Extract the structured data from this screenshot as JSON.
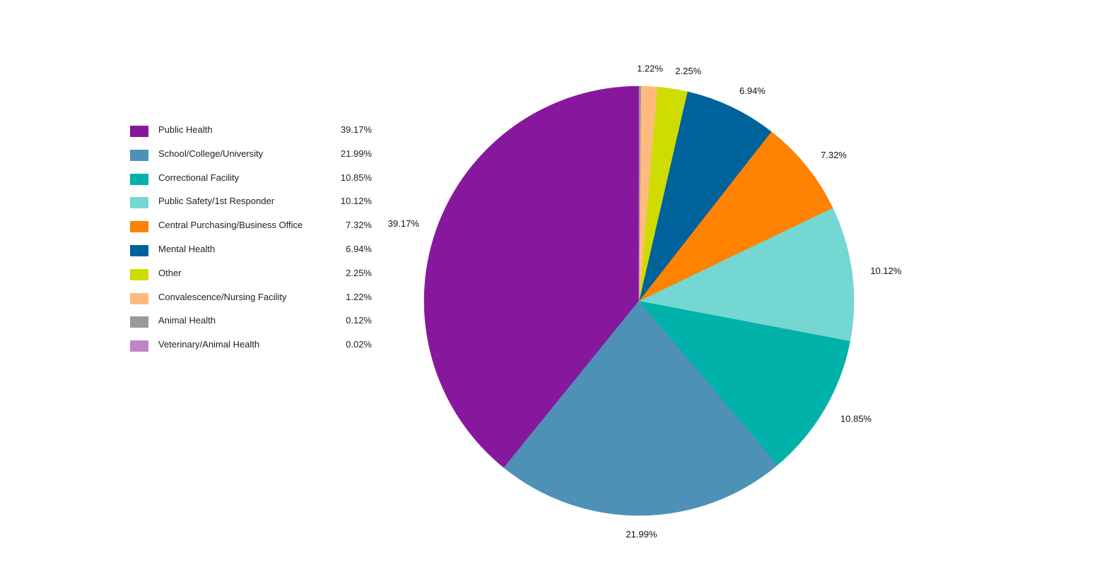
{
  "chart_data": {
    "type": "pie",
    "title": "",
    "legend_position": "left",
    "slices": [
      {
        "label": "Public Health",
        "value": 39.17,
        "display": "39.17%",
        "color": "#87189d"
      },
      {
        "label": "School/College/University",
        "value": 21.99,
        "display": "21.99%",
        "color": "#4e91b6"
      },
      {
        "label": "Correctional Facility",
        "value": 10.85,
        "display": "10.85%",
        "color": "#00b2aa"
      },
      {
        "label": "Public Safety/1st Responder",
        "value": 10.12,
        "display": "10.12%",
        "color": "#74d7d1"
      },
      {
        "label": "Central Purchasing/Business Office",
        "value": 7.32,
        "display": "7.32%",
        "color": "#ff8200"
      },
      {
        "label": "Mental Health",
        "value": 6.94,
        "display": "6.94%",
        "color": "#00629b"
      },
      {
        "label": "Other",
        "value": 2.25,
        "display": "2.25%",
        "color": "#cedc00"
      },
      {
        "label": "Convalescence/Nursing Facility",
        "value": 1.22,
        "display": "1.22%",
        "color": "#ffbb7d"
      },
      {
        "label": "Animal Health",
        "value": 0.12,
        "display": "0.12%",
        "color": "#999999"
      },
      {
        "label": "Veterinary/Animal Health",
        "value": 0.02,
        "display": "0.02%",
        "color": "#c183c8"
      }
    ],
    "slice_labels_shown": [
      "39.17%",
      "21.99%",
      "10.85%",
      "10.12%",
      "7.32%",
      "6.94%",
      "2.25%",
      "1.22%"
    ]
  }
}
